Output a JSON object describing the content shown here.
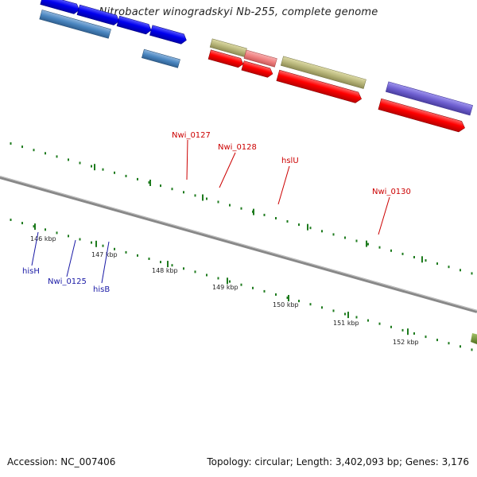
{
  "title": "Nitrobacter winogradskyi Nb-255, complete genome",
  "footer": {
    "accession": "Accession: NC_007406",
    "summary": "Topology: circular; Length: 3,402,093 bp; Genes: 3,176"
  },
  "scale": {
    "ticks": [
      "146 kbp",
      "147 kbp",
      "148 kbp",
      "149 kbp",
      "150 kbp",
      "151 kbp",
      "152 kbp"
    ]
  },
  "features": {
    "red_labels": [
      "Nwi_0127",
      "Nwi_0128",
      "hslU",
      "Nwi_0130"
    ],
    "blue_labels": [
      "hisH",
      "Nwi_0125",
      "hisB"
    ]
  },
  "colors": {
    "cds": "#ff0000",
    "gene_blue": "#0000ee",
    "steel_blue": "#4a86c0",
    "olive": "#b8b67a",
    "salmon": "#f08080",
    "purple": "#6e5fd0",
    "grey": "#c8c8c8",
    "tick_green": "#1e7b1e",
    "red_label": "#cc0000",
    "blue_label": "#1a1aa6"
  }
}
